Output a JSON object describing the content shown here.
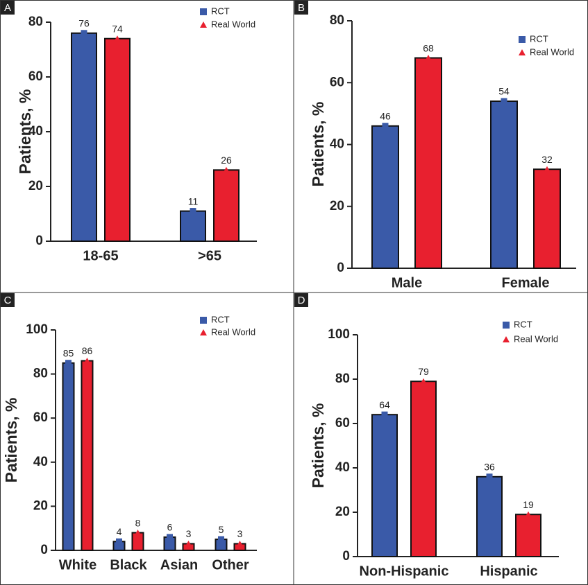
{
  "chart_data": [
    {
      "type": "bar",
      "panel": "A",
      "ylabel": "Patients, %",
      "categories": [
        "18-65",
        ">65"
      ],
      "series": [
        {
          "name": "RCT",
          "color": "#3a5aa8",
          "marker": "square",
          "values": [
            76,
            11
          ]
        },
        {
          "name": "Real World",
          "color": "#e8202f",
          "marker": "triangle",
          "values": [
            74,
            26
          ]
        }
      ],
      "ylim": [
        0,
        80
      ],
      "yticks": [
        0,
        20,
        40,
        60,
        80
      ]
    },
    {
      "type": "bar",
      "panel": "B",
      "ylabel": "Patients, %",
      "categories": [
        "Male",
        "Female"
      ],
      "series": [
        {
          "name": "RCT",
          "color": "#3a5aa8",
          "marker": "square",
          "values": [
            46,
            54
          ]
        },
        {
          "name": "Real World",
          "color": "#e8202f",
          "marker": "triangle",
          "values": [
            68,
            32
          ]
        }
      ],
      "ylim": [
        0,
        80
      ],
      "yticks": [
        0,
        20,
        40,
        60,
        80
      ]
    },
    {
      "type": "bar",
      "panel": "C",
      "ylabel": "Patients, %",
      "categories": [
        "White",
        "Black",
        "Asian",
        "Other"
      ],
      "series": [
        {
          "name": "RCT",
          "color": "#3a5aa8",
          "marker": "square",
          "values": [
            85,
            4,
            6,
            5
          ]
        },
        {
          "name": "Real World",
          "color": "#e8202f",
          "marker": "triangle",
          "values": [
            86,
            8,
            3,
            3
          ]
        }
      ],
      "ylim": [
        0,
        100
      ],
      "yticks": [
        0,
        20,
        40,
        60,
        80,
        100
      ]
    },
    {
      "type": "bar",
      "panel": "D",
      "ylabel": "Patients, %",
      "categories": [
        "Non-Hispanic",
        "Hispanic"
      ],
      "series": [
        {
          "name": "RCT",
          "color": "#3a5aa8",
          "marker": "square",
          "values": [
            64,
            36
          ]
        },
        {
          "name": "Real World",
          "color": "#e8202f",
          "marker": "triangle",
          "values": [
            79,
            19
          ]
        }
      ],
      "ylim": [
        0,
        100
      ],
      "yticks": [
        0,
        20,
        40,
        60,
        80,
        100
      ]
    }
  ]
}
